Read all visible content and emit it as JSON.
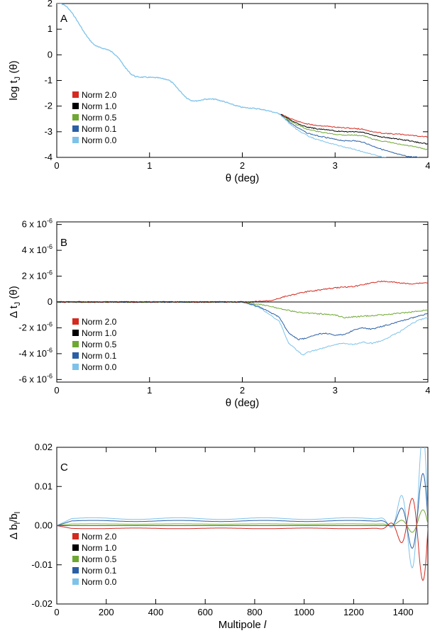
{
  "chart_data": [
    {
      "panel": "A",
      "type": "line",
      "xlabel": "θ (deg)",
      "ylabel": "log tJ (θ)",
      "xlim": [
        0,
        4
      ],
      "ylim": [
        -4,
        2
      ],
      "xticks": [
        0,
        1,
        2,
        3,
        4
      ],
      "yticks": [
        2,
        1,
        0,
        -1,
        -2,
        -3,
        -4
      ],
      "grid": false,
      "legend": "lower-left",
      "common": [
        [
          0,
          2.0
        ],
        [
          0.05,
          2.0
        ],
        [
          0.1,
          1.9
        ],
        [
          0.15,
          1.7
        ],
        [
          0.2,
          1.45
        ],
        [
          0.25,
          1.15
        ],
        [
          0.3,
          0.85
        ],
        [
          0.35,
          0.6
        ],
        [
          0.4,
          0.4
        ],
        [
          0.45,
          0.3
        ],
        [
          0.5,
          0.25
        ],
        [
          0.55,
          0.2
        ],
        [
          0.6,
          0.1
        ],
        [
          0.65,
          -0.05
        ],
        [
          0.7,
          -0.3
        ],
        [
          0.75,
          -0.55
        ],
        [
          0.8,
          -0.75
        ],
        [
          0.85,
          -0.85
        ],
        [
          0.9,
          -0.87
        ],
        [
          1.0,
          -0.88
        ],
        [
          1.1,
          -0.9
        ],
        [
          1.2,
          -0.97
        ],
        [
          1.25,
          -1.1
        ],
        [
          1.3,
          -1.3
        ],
        [
          1.35,
          -1.5
        ],
        [
          1.4,
          -1.68
        ],
        [
          1.45,
          -1.78
        ],
        [
          1.5,
          -1.8
        ],
        [
          1.55,
          -1.77
        ],
        [
          1.6,
          -1.73
        ],
        [
          1.7,
          -1.73
        ],
        [
          1.8,
          -1.82
        ],
        [
          1.9,
          -1.95
        ],
        [
          2.0,
          -2.05
        ],
        [
          2.1,
          -2.08
        ],
        [
          2.2,
          -2.12
        ],
        [
          2.3,
          -2.2
        ],
        [
          2.4,
          -2.3
        ]
      ],
      "series": [
        {
          "name": "Norm 2.0",
          "color": "#d42a20",
          "tail": [
            [
              2.4,
              -2.3
            ],
            [
              2.5,
              -2.45
            ],
            [
              2.6,
              -2.6
            ],
            [
              2.7,
              -2.7
            ],
            [
              2.8,
              -2.75
            ],
            [
              2.9,
              -2.78
            ],
            [
              3.0,
              -2.82
            ],
            [
              3.1,
              -2.85
            ],
            [
              3.2,
              -2.87
            ],
            [
              3.3,
              -2.9
            ],
            [
              3.4,
              -3.0
            ],
            [
              3.5,
              -3.05
            ],
            [
              3.6,
              -3.08
            ],
            [
              3.7,
              -3.1
            ],
            [
              3.8,
              -3.13
            ],
            [
              3.9,
              -3.17
            ],
            [
              4.0,
              -3.2
            ]
          ]
        },
        {
          "name": "Norm 1.0",
          "color": "#000000",
          "tail": [
            [
              2.4,
              -2.3
            ],
            [
              2.5,
              -2.5
            ],
            [
              2.6,
              -2.68
            ],
            [
              2.7,
              -2.82
            ],
            [
              2.8,
              -2.88
            ],
            [
              2.9,
              -2.92
            ],
            [
              3.0,
              -2.97
            ],
            [
              3.1,
              -3.0
            ],
            [
              3.2,
              -3.0
            ],
            [
              3.3,
              -3.02
            ],
            [
              3.4,
              -3.13
            ],
            [
              3.5,
              -3.2
            ],
            [
              3.6,
              -3.25
            ],
            [
              3.7,
              -3.3
            ],
            [
              3.8,
              -3.35
            ],
            [
              3.9,
              -3.42
            ],
            [
              4.0,
              -3.48
            ]
          ]
        },
        {
          "name": "Norm 0.5",
          "color": "#6ea832",
          "tail": [
            [
              2.4,
              -2.3
            ],
            [
              2.5,
              -2.55
            ],
            [
              2.6,
              -2.75
            ],
            [
              2.7,
              -2.9
            ],
            [
              2.8,
              -2.98
            ],
            [
              2.9,
              -3.05
            ],
            [
              3.0,
              -3.1
            ],
            [
              3.1,
              -3.13
            ],
            [
              3.2,
              -3.13
            ],
            [
              3.3,
              -3.15
            ],
            [
              3.4,
              -3.28
            ],
            [
              3.5,
              -3.36
            ],
            [
              3.6,
              -3.42
            ],
            [
              3.7,
              -3.5
            ],
            [
              3.8,
              -3.55
            ],
            [
              3.9,
              -3.62
            ],
            [
              4.0,
              -3.7
            ]
          ]
        },
        {
          "name": "Norm 0.1",
          "color": "#2a5fa5",
          "tail": [
            [
              2.4,
              -2.3
            ],
            [
              2.5,
              -2.6
            ],
            [
              2.6,
              -2.85
            ],
            [
              2.7,
              -3.05
            ],
            [
              2.8,
              -3.15
            ],
            [
              2.9,
              -3.22
            ],
            [
              3.0,
              -3.3
            ],
            [
              3.1,
              -3.35
            ],
            [
              3.2,
              -3.35
            ],
            [
              3.3,
              -3.4
            ],
            [
              3.4,
              -3.55
            ],
            [
              3.5,
              -3.68
            ],
            [
              3.6,
              -3.8
            ],
            [
              3.7,
              -3.9
            ],
            [
              3.8,
              -3.97
            ],
            [
              3.9,
              -4.0
            ]
          ]
        },
        {
          "name": "Norm 0.0",
          "color": "#7ec2ea",
          "tail": [
            [
              2.4,
              -2.3
            ],
            [
              2.5,
              -2.65
            ],
            [
              2.6,
              -2.95
            ],
            [
              2.7,
              -3.15
            ],
            [
              2.8,
              -3.3
            ],
            [
              2.9,
              -3.4
            ],
            [
              3.0,
              -3.5
            ],
            [
              3.1,
              -3.6
            ],
            [
              3.2,
              -3.68
            ],
            [
              3.3,
              -3.78
            ],
            [
              3.4,
              -3.88
            ],
            [
              3.5,
              -3.97
            ],
            [
              3.55,
              -4.0
            ]
          ]
        }
      ]
    },
    {
      "panel": "B",
      "type": "line",
      "xlabel": "θ (deg)",
      "ylabel": "Δ tJ (θ)",
      "xlim": [
        0,
        4
      ],
      "ylim": [
        -6.2,
        6.2
      ],
      "yunit": "×10^-6",
      "xticks": [
        0,
        1,
        2,
        3,
        4
      ],
      "ytick_labels": [
        "6 x 10-6",
        "4 x 10-6",
        "2 x 10-6",
        "0",
        "-2 x 10-6",
        "-4 x 10-6",
        "-6 x 10-6"
      ],
      "grid": false,
      "legend": "lower-left",
      "series": [
        {
          "name": "Norm 2.0",
          "color": "#d42a20",
          "points": [
            [
              0,
              0
            ],
            [
              2.1,
              0
            ],
            [
              2.3,
              0.1
            ],
            [
              2.5,
              0.5
            ],
            [
              2.7,
              0.8
            ],
            [
              2.8,
              0.9
            ],
            [
              3.0,
              1.1
            ],
            [
              3.2,
              1.2
            ],
            [
              3.4,
              1.5
            ],
            [
              3.5,
              1.6
            ],
            [
              3.6,
              1.55
            ],
            [
              3.8,
              1.4
            ],
            [
              4.0,
              1.5
            ]
          ]
        },
        {
          "name": "Norm 1.0",
          "color": "#000000",
          "points": [
            [
              0,
              0
            ],
            [
              4.0,
              0
            ]
          ]
        },
        {
          "name": "Norm 0.5",
          "color": "#6ea832",
          "points": [
            [
              0,
              0
            ],
            [
              2.0,
              0
            ],
            [
              2.2,
              -0.2
            ],
            [
              2.4,
              -0.5
            ],
            [
              2.6,
              -0.8
            ],
            [
              2.8,
              -0.9
            ],
            [
              3.0,
              -1.0
            ],
            [
              3.1,
              -1.2
            ],
            [
              3.3,
              -1.1
            ],
            [
              3.5,
              -1.0
            ],
            [
              3.8,
              -0.8
            ],
            [
              4.0,
              -0.6
            ]
          ]
        },
        {
          "name": "Norm 0.1",
          "color": "#2a5fa5",
          "points": [
            [
              0,
              0
            ],
            [
              2.0,
              0
            ],
            [
              2.2,
              -0.4
            ],
            [
              2.4,
              -1.2
            ],
            [
              2.5,
              -2.4
            ],
            [
              2.6,
              -2.9
            ],
            [
              2.7,
              -2.8
            ],
            [
              2.8,
              -2.5
            ],
            [
              2.9,
              -2.4
            ],
            [
              3.0,
              -2.6
            ],
            [
              3.1,
              -2.5
            ],
            [
              3.2,
              -2.2
            ],
            [
              3.3,
              -2.0
            ],
            [
              3.4,
              -2.1
            ],
            [
              3.5,
              -1.9
            ],
            [
              3.7,
              -1.5
            ],
            [
              3.8,
              -1.3
            ],
            [
              4.0,
              -0.9
            ]
          ]
        },
        {
          "name": "Norm 0.0",
          "color": "#7ec2ea",
          "points": [
            [
              0,
              0
            ],
            [
              2.0,
              0
            ],
            [
              2.2,
              -0.5
            ],
            [
              2.4,
              -1.5
            ],
            [
              2.5,
              -3.2
            ],
            [
              2.6,
              -3.8
            ],
            [
              2.65,
              -4.1
            ],
            [
              2.7,
              -3.9
            ],
            [
              2.8,
              -3.7
            ],
            [
              2.9,
              -3.5
            ],
            [
              3.0,
              -3.3
            ],
            [
              3.1,
              -3.2
            ],
            [
              3.2,
              -3.3
            ],
            [
              3.3,
              -3.1
            ],
            [
              3.4,
              -3.2
            ],
            [
              3.5,
              -3.0
            ],
            [
              3.7,
              -2.3
            ],
            [
              3.8,
              -1.8
            ],
            [
              3.9,
              -1.4
            ],
            [
              4.0,
              -1.2
            ]
          ]
        }
      ]
    },
    {
      "panel": "C",
      "type": "line",
      "xlabel": "Multipole l",
      "ylabel": "Δ bl/bl",
      "xlim": [
        0,
        1500
      ],
      "ylim": [
        -0.02,
        0.02
      ],
      "xticks": [
        0,
        200,
        400,
        600,
        800,
        1000,
        1200,
        1400
      ],
      "ytick_labels": [
        "0.02",
        "0.01",
        "0.00",
        "-0.01",
        "-0.02"
      ],
      "grid": false,
      "legend": "lower-left",
      "series": [
        {
          "name": "Norm 2.0",
          "color": "#d42a20",
          "base": -0.0007,
          "sign": -1,
          "amp": 0.55
        },
        {
          "name": "Norm 1.0",
          "color": "#000000",
          "base": 0.0,
          "sign": 1,
          "amp": 0.0
        },
        {
          "name": "Norm 0.5",
          "color": "#6ea832",
          "base": 0.0004,
          "sign": 1,
          "amp": 0.15
        },
        {
          "name": "Norm 0.1",
          "color": "#2a5fa5",
          "base": 0.0012,
          "sign": 1,
          "amp": 0.5
        },
        {
          "name": "Norm 0.0",
          "color": "#7ec2ea",
          "base": 0.0018,
          "sign": 1,
          "amp": 0.9
        }
      ]
    }
  ]
}
